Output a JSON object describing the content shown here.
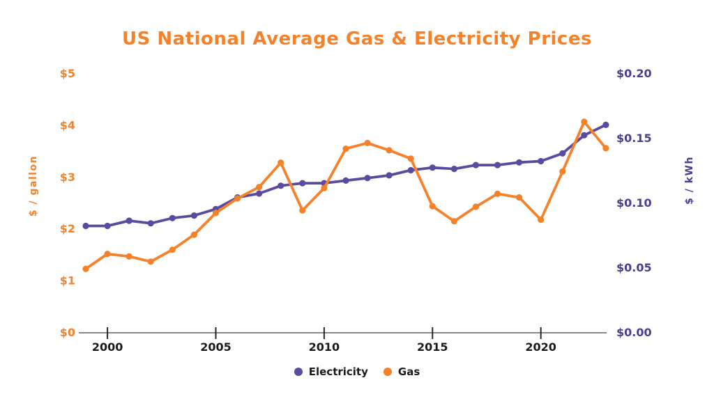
{
  "chart_data": {
    "type": "line",
    "title": "US National Average Gas & Electricity Prices",
    "grid": false,
    "legend_position": "bottom",
    "x": [
      1999,
      2000,
      2001,
      2002,
      2003,
      2004,
      2005,
      2006,
      2007,
      2008,
      2009,
      2010,
      2011,
      2012,
      2013,
      2014,
      2015,
      2016,
      2017,
      2018,
      2019,
      2020,
      2021,
      2022,
      2023
    ],
    "x_axis": {
      "range": [
        1999,
        2023
      ],
      "tick_years": [
        2000,
        2005,
        2010,
        2015,
        2020
      ],
      "tick_labels": [
        "2000",
        "2005",
        "2010",
        "2015",
        "2020"
      ]
    },
    "left_axis": {
      "label": "$ / gallon",
      "min": 0,
      "max": 5,
      "ticks": [
        0,
        1,
        2,
        3,
        4,
        5
      ],
      "tick_labels": [
        "$0",
        "$1",
        "$2",
        "$3",
        "$4",
        "$5"
      ]
    },
    "right_axis": {
      "label": "$ / kWh",
      "min": 0,
      "max": 0.2,
      "ticks": [
        0,
        0.05,
        0.1,
        0.15,
        0.2
      ],
      "tick_labels": [
        "$0.00",
        "$0.05",
        "$0.10",
        "$0.15",
        "$0.20"
      ]
    },
    "series": [
      {
        "name": "Electricity",
        "axis": "right",
        "color": "#5b4a9e",
        "values": [
          0.082,
          0.082,
          0.086,
          0.084,
          0.088,
          0.09,
          0.095,
          0.104,
          0.107,
          0.113,
          0.115,
          0.115,
          0.117,
          0.119,
          0.121,
          0.125,
          0.127,
          0.126,
          0.129,
          0.129,
          0.131,
          0.132,
          0.138,
          0.152,
          0.16
        ]
      },
      {
        "name": "Gas",
        "axis": "left",
        "color": "#f5822a",
        "values": [
          1.22,
          1.51,
          1.46,
          1.36,
          1.59,
          1.88,
          2.3,
          2.58,
          2.8,
          3.27,
          2.35,
          2.78,
          3.54,
          3.65,
          3.51,
          3.35,
          2.43,
          2.14,
          2.42,
          2.67,
          2.6,
          2.17,
          3.1,
          4.06,
          3.55
        ]
      }
    ],
    "colors": {
      "title": "#f5822a",
      "electricity_accent": "#5b4a9e",
      "gas_accent": "#f5822a",
      "left_axis_text": "#f5822a",
      "right_axis_text": "#4a3d90",
      "x_axis_text": "#1a1a1a",
      "legend_text": "#1a1a1a",
      "axis_line": "#8a8a8a",
      "tick_mark": "#262626",
      "background": "#ffffff"
    }
  }
}
